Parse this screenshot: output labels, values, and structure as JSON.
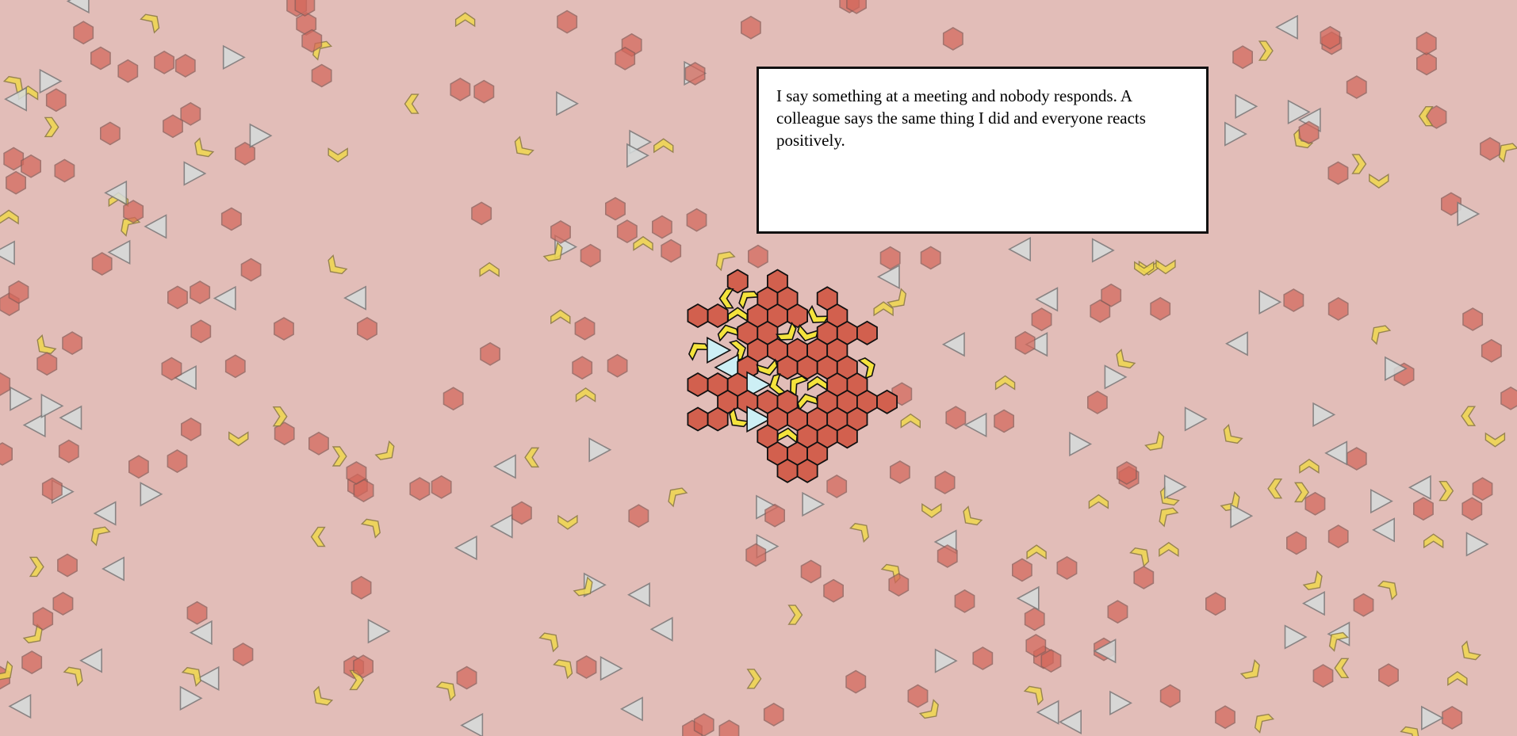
{
  "scene": {
    "background_color": "#e2bdb8",
    "palette": {
      "hexagon": "#d4675a",
      "chevron": "#f0d84e",
      "triangle": "#d6dcdc",
      "cluster_hexagon": "#d2604e",
      "cluster_chevron": "#f4e33c",
      "cluster_triangle": "#cdeff5"
    },
    "shape_kinds": [
      "hexagon-icon",
      "chevron-icon",
      "triangle-icon"
    ],
    "cluster": {
      "description_state": "dense group of highlighted shapes"
    }
  },
  "message": {
    "text": "I say something at a meeting and nobody responds. A colleague says the same thing I did and everyone reacts positively."
  }
}
